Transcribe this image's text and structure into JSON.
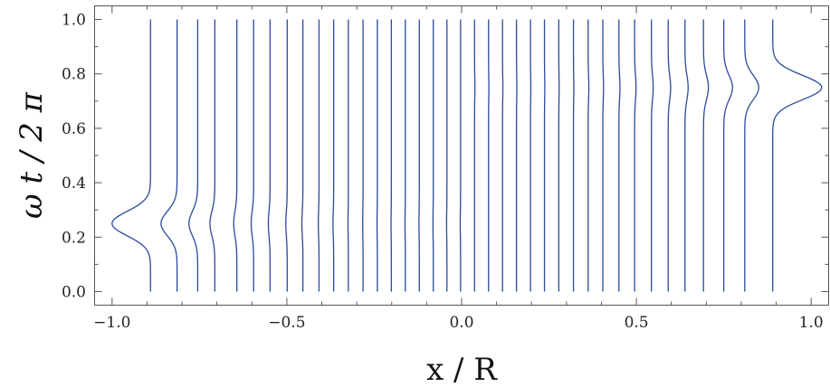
{
  "chart_data": {
    "type": "line",
    "title": "",
    "xlabel": "x / R",
    "ylabel": "ω t / 2 π",
    "xlim": [
      -1.05,
      1.05
    ],
    "ylim": [
      -0.05,
      1.05
    ],
    "x_ticks": [
      {
        "value": -1.0,
        "label": "−1.0"
      },
      {
        "value": -0.5,
        "label": "−0.5"
      },
      {
        "value": 0.0,
        "label": "0.0"
      },
      {
        "value": 0.5,
        "label": "0.5"
      },
      {
        "value": 1.0,
        "label": "1.0"
      }
    ],
    "x_minor_ticks": [
      -0.9,
      -0.8,
      -0.7,
      -0.6,
      -0.4,
      -0.3,
      -0.2,
      -0.1,
      0.1,
      0.2,
      0.3,
      0.4,
      0.6,
      0.7,
      0.8,
      0.9
    ],
    "y_ticks": [
      {
        "value": 0.0,
        "label": "0.0"
      },
      {
        "value": 0.2,
        "label": "0.2"
      },
      {
        "value": 0.4,
        "label": "0.4"
      },
      {
        "value": 0.6,
        "label": "0.6"
      },
      {
        "value": 0.8,
        "label": "0.8"
      },
      {
        "value": 1.0,
        "label": "1.0"
      }
    ],
    "y_minor_ticks": [
      0.1,
      0.3,
      0.5,
      0.7,
      0.9
    ],
    "grid": false,
    "line_color": "#2b4a9c",
    "series": [
      {
        "x_base": -0.89,
        "peak_t": 0.25,
        "peak_x": -1.0
      },
      {
        "x_base": -0.814,
        "peak_t": 0.25,
        "peak_x": -0.86
      },
      {
        "x_base": -0.755,
        "peak_t": 0.25,
        "peak_x": -0.78
      },
      {
        "x_base": -0.706,
        "peak_t": 0.25,
        "peak_x": -0.72
      },
      {
        "x_base": -0.643,
        "peak_t": 0.25,
        "peak_x": -0.652
      },
      {
        "x_base": -0.595,
        "peak_t": 0.25,
        "peak_x": -0.602
      },
      {
        "x_base": -0.548,
        "peak_t": 0.25,
        "peak_x": -0.553
      },
      {
        "x_base": -0.499,
        "peak_t": 0.25,
        "peak_x": -0.503
      },
      {
        "x_base": -0.454,
        "peak_t": 0.25,
        "peak_x": -0.457
      },
      {
        "x_base": -0.408,
        "peak_t": 0.25,
        "peak_x": -0.41
      },
      {
        "x_base": -0.366,
        "peak_t": 0.25,
        "peak_x": -0.368
      },
      {
        "x_base": -0.324,
        "peak_t": 0.25,
        "peak_x": -0.325
      },
      {
        "x_base": -0.282,
        "peak_t": 0.25,
        "peak_x": -0.283
      },
      {
        "x_base": -0.241,
        "peak_t": 0.25,
        "peak_x": -0.242
      },
      {
        "x_base": -0.201,
        "peak_t": 0.25,
        "peak_x": -0.202
      },
      {
        "x_base": -0.161,
        "peak_t": 0.25,
        "peak_x": -0.162
      },
      {
        "x_base": -0.121,
        "peak_t": 0.25,
        "peak_x": -0.122
      },
      {
        "x_base": -0.081,
        "peak_t": 0.25,
        "peak_x": -0.082
      },
      {
        "x_base": -0.042,
        "peak_t": 0.25,
        "peak_x": -0.043
      },
      {
        "x_base": -0.003,
        "peak_t": 0.25,
        "peak_x": -0.004
      },
      {
        "x_base": 0.037,
        "peak_t": 0.75,
        "peak_x": 0.038
      },
      {
        "x_base": 0.077,
        "peak_t": 0.75,
        "peak_x": 0.078
      },
      {
        "x_base": 0.117,
        "peak_t": 0.75,
        "peak_x": 0.118
      },
      {
        "x_base": 0.157,
        "peak_t": 0.75,
        "peak_x": 0.158
      },
      {
        "x_base": 0.197,
        "peak_t": 0.75,
        "peak_x": 0.198
      },
      {
        "x_base": 0.237,
        "peak_t": 0.75,
        "peak_x": 0.238
      },
      {
        "x_base": 0.278,
        "peak_t": 0.75,
        "peak_x": 0.279
      },
      {
        "x_base": 0.32,
        "peak_t": 0.75,
        "peak_x": 0.321
      },
      {
        "x_base": 0.362,
        "peak_t": 0.75,
        "peak_x": 0.364
      },
      {
        "x_base": 0.404,
        "peak_t": 0.75,
        "peak_x": 0.406
      },
      {
        "x_base": 0.45,
        "peak_t": 0.75,
        "peak_x": 0.453
      },
      {
        "x_base": 0.495,
        "peak_t": 0.75,
        "peak_x": 0.499
      },
      {
        "x_base": 0.543,
        "peak_t": 0.75,
        "peak_x": 0.548
      },
      {
        "x_base": 0.591,
        "peak_t": 0.75,
        "peak_x": 0.598
      },
      {
        "x_base": 0.639,
        "peak_t": 0.75,
        "peak_x": 0.648
      },
      {
        "x_base": 0.692,
        "peak_t": 0.75,
        "peak_x": 0.706
      },
      {
        "x_base": 0.75,
        "peak_t": 0.75,
        "peak_x": 0.775
      },
      {
        "x_base": 0.81,
        "peak_t": 0.75,
        "peak_x": 0.85
      },
      {
        "x_base": 0.89,
        "peak_t": 0.75,
        "peak_x": 1.03
      }
    ]
  }
}
